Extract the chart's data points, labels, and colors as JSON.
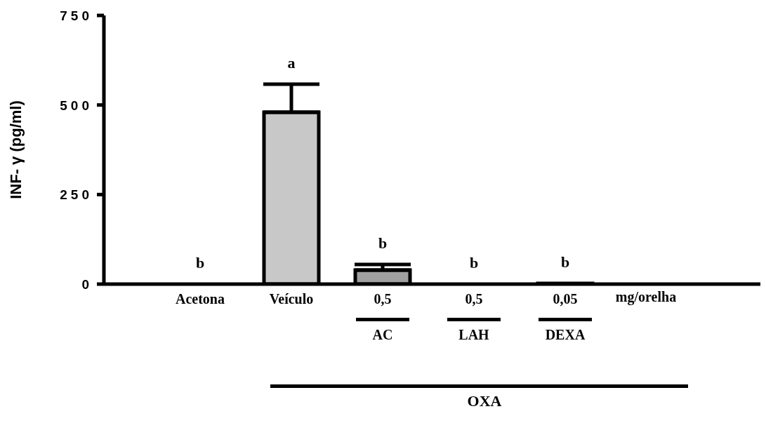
{
  "chart_data": {
    "type": "bar",
    "ylabel": "INF- γ (pg/ml)",
    "categories": [
      "Acetona",
      "Veículo",
      "0,5",
      "0,5",
      "0,05"
    ],
    "values": [
      0,
      480,
      39,
      0,
      2
    ],
    "colors": [
      "#c8c8c8",
      "#c8c8c8",
      "#a0a0a0",
      "#c8c8c8",
      "#c8c8c8"
    ],
    "errors": [
      null,
      [
        480,
        558
      ],
      [
        39,
        55
      ],
      null,
      null
    ],
    "ylim": [
      0,
      750
    ],
    "yticks": [
      0,
      250,
      500,
      750
    ],
    "annotations": [
      "b",
      "a",
      "b",
      "b",
      "b",
      "mg/orelha",
      "AC",
      "LAH",
      "DEXA",
      "OXA"
    ]
  }
}
